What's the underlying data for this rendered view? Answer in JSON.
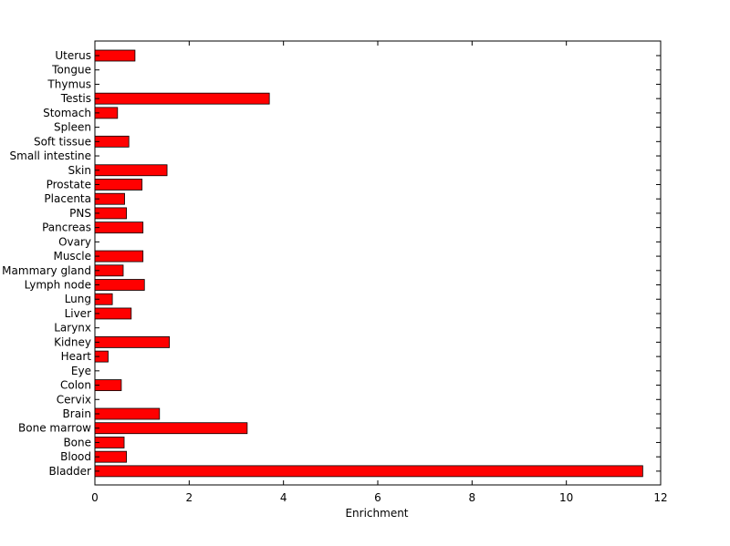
{
  "chart_data": {
    "type": "bar",
    "orientation": "horizontal",
    "categories": [
      "Uterus",
      "Tongue",
      "Thymus",
      "Testis",
      "Stomach",
      "Spleen",
      "Soft tissue",
      "Small intestine",
      "Skin",
      "Prostate",
      "Placenta",
      "PNS",
      "Pancreas",
      "Ovary",
      "Muscle",
      "Mammary gland",
      "Lymph node",
      "Lung",
      "Liver",
      "Larynx",
      "Kidney",
      "Heart",
      "Eye",
      "Colon",
      "Cervix",
      "Brain",
      "Bone marrow",
      "Bone",
      "Blood",
      "Bladder"
    ],
    "values": [
      0.85,
      0,
      0,
      3.7,
      0.48,
      0,
      0.72,
      0,
      1.53,
      1.0,
      0.63,
      0.67,
      1.02,
      0,
      1.02,
      0.6,
      1.05,
      0.37,
      0.77,
      0,
      1.58,
      0.28,
      0,
      0.56,
      0,
      1.37,
      3.23,
      0.62,
      0.67,
      11.62
    ],
    "xlabel": "Enrichment",
    "ylabel": "",
    "xlim": [
      0,
      12
    ],
    "xticks": [
      0,
      2,
      4,
      6,
      8,
      10,
      12
    ],
    "grid": false,
    "bar_color": "#ff0000",
    "bar_edge_color": "#000000"
  }
}
